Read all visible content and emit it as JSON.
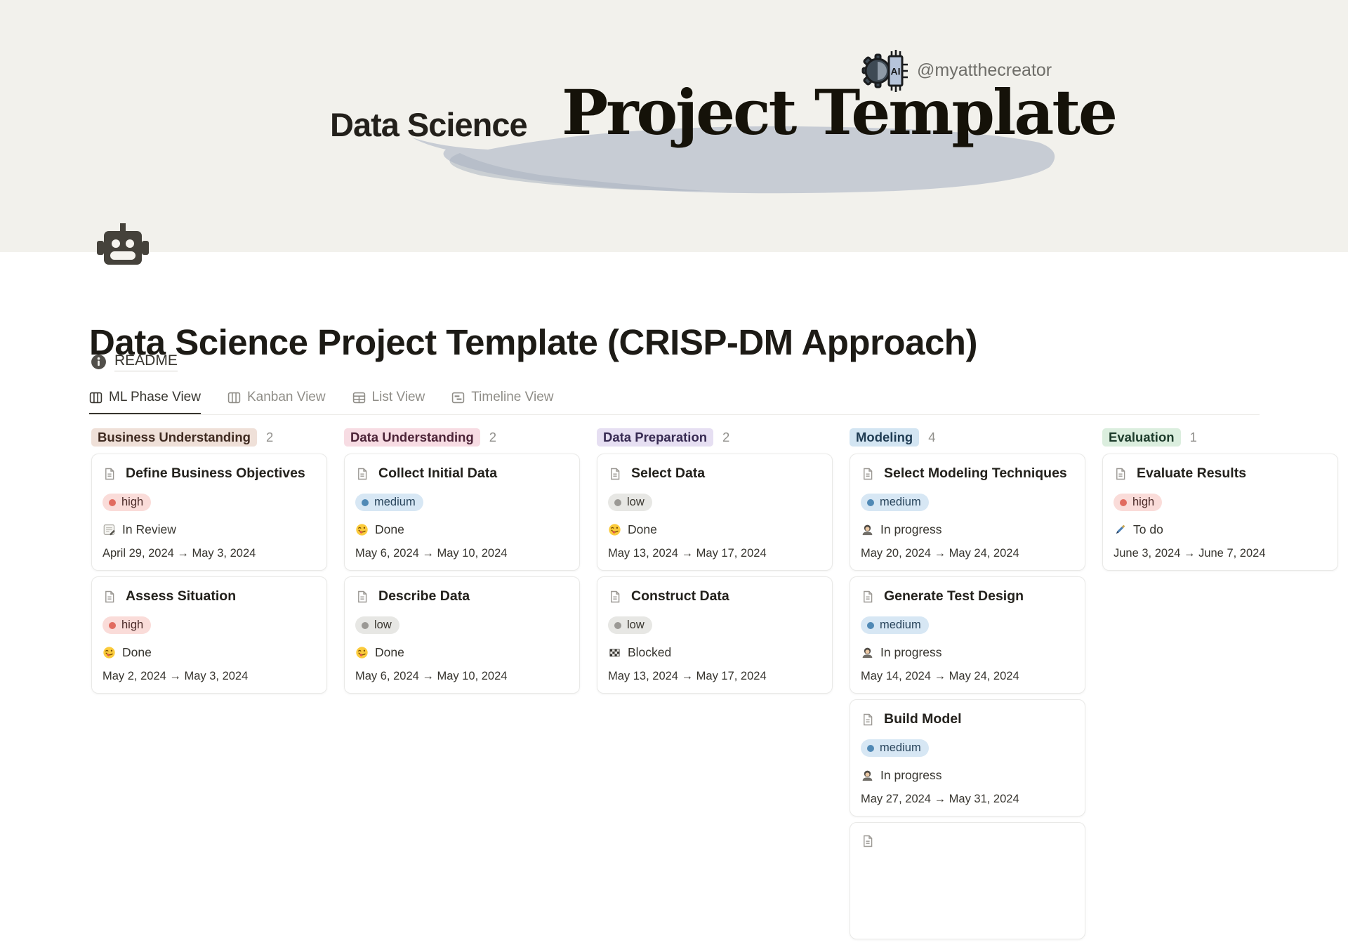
{
  "banner": {
    "handle": "@myatthecreator",
    "logo_icon": "ai-chip-gear-icon",
    "logo_text": "AI",
    "title_small": "Data Science",
    "title_large": "Project Template",
    "background_color": "#F2F1EC",
    "brush_color": "#C2C8D2"
  },
  "page": {
    "icon": "robot-icon",
    "title": "Data Science Project Template (CRISP-DM Approach)",
    "readme": {
      "icon": "info-icon",
      "label": "README"
    }
  },
  "tabs": [
    {
      "label": "ML Phase View",
      "icon": "board-icon",
      "active": true
    },
    {
      "label": "Kanban View",
      "icon": "board-icon",
      "active": false
    },
    {
      "label": "List View",
      "icon": "table-icon",
      "active": false
    },
    {
      "label": "Timeline View",
      "icon": "timeline-icon",
      "active": false
    }
  ],
  "board": {
    "priorities": {
      "high": {
        "label": "high",
        "bg": "#FADCD9",
        "dot": "#E16B5F",
        "text": "#4C2B29"
      },
      "medium": {
        "label": "medium",
        "bg": "#D7E7F4",
        "dot": "#5089B5",
        "text": "#29455C"
      },
      "low": {
        "label": "low",
        "bg": "#E7E7E4",
        "dot": "#9B9995",
        "text": "#39362F"
      }
    },
    "columns": [
      {
        "name": "Business Understanding",
        "count": "2",
        "color": {
          "bg": "#EFE0D8",
          "text": "#3F2A20"
        },
        "cards": [
          {
            "title": "Define Business Objectives",
            "priority": "high",
            "status": {
              "icon": "in-review-memo-icon",
              "label": "In Review"
            },
            "dates": "April 29, 2024 → May 3, 2024"
          },
          {
            "title": "Assess Situation",
            "priority": "high",
            "status": {
              "icon": "done-face-icon",
              "label": "Done"
            },
            "dates": "May 2, 2024 → May 3, 2024"
          }
        ]
      },
      {
        "name": "Data Understanding",
        "count": "2",
        "color": {
          "bg": "#F7DCE3",
          "text": "#4C2337"
        },
        "cards": [
          {
            "title": "Collect Initial Data",
            "priority": "medium",
            "status": {
              "icon": "done-face-icon",
              "label": "Done"
            },
            "dates": "May 6, 2024 → May 10, 2024"
          },
          {
            "title": "Describe Data",
            "priority": "low",
            "status": {
              "icon": "done-face-icon",
              "label": "Done"
            },
            "dates": "May 6, 2024 → May 10, 2024"
          }
        ]
      },
      {
        "name": "Data Preparation",
        "count": "2",
        "color": {
          "bg": "#E6DFF2",
          "text": "#372A52"
        },
        "cards": [
          {
            "title": "Select Data",
            "priority": "low",
            "status": {
              "icon": "done-face-icon",
              "label": "Done"
            },
            "dates": "May 13, 2024 → May 17, 2024"
          },
          {
            "title": "Construct Data",
            "priority": "low",
            "status": {
              "icon": "blocked-flag-icon",
              "label": "Blocked"
            },
            "dates": "May 13, 2024 → May 17, 2024"
          }
        ]
      },
      {
        "name": "Modeling",
        "count": "4",
        "color": {
          "bg": "#D3E5F2",
          "text": "#1F3C53"
        },
        "cards": [
          {
            "title": "Select Modeling Techniques",
            "priority": "medium",
            "status": {
              "icon": "in-progress-person-icon",
              "label": "In progress"
            },
            "dates": "May 20, 2024 → May 24, 2024"
          },
          {
            "title": "Generate Test Design",
            "priority": "medium",
            "status": {
              "icon": "in-progress-person-icon",
              "label": "In progress"
            },
            "dates": "May 14, 2024 → May 24, 2024"
          },
          {
            "title": "Build Model",
            "priority": "medium",
            "status": {
              "icon": "in-progress-person-icon",
              "label": "In progress"
            },
            "dates": "May 27, 2024 → May 31, 2024"
          },
          {
            "partial": true
          }
        ]
      },
      {
        "name": "Evaluation",
        "count": "1",
        "color": {
          "bg": "#DBEEDE",
          "text": "#1C3B2A"
        },
        "cards": [
          {
            "title": "Evaluate Results",
            "priority": "high",
            "status": {
              "icon": "todo-pen-icon",
              "label": "To do"
            },
            "dates": "June 3, 2024 → June 7, 2024"
          }
        ]
      }
    ]
  }
}
